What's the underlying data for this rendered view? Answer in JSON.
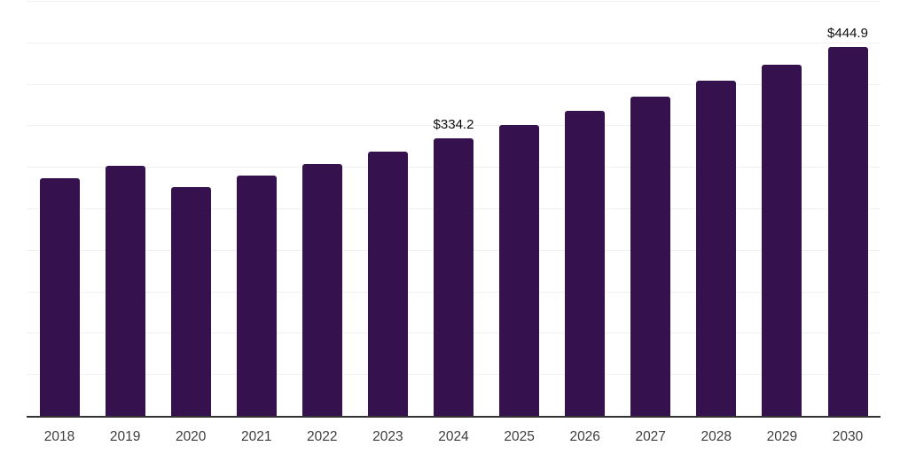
{
  "chart_data": {
    "type": "bar",
    "title": "",
    "xlabel": "",
    "ylabel": "",
    "categories": [
      "2018",
      "2019",
      "2020",
      "2021",
      "2022",
      "2023",
      "2024",
      "2025",
      "2026",
      "2027",
      "2028",
      "2029",
      "2030"
    ],
    "values": [
      286.4,
      301.3,
      276.0,
      289.4,
      303.0,
      318.4,
      334.2,
      350.3,
      367.2,
      385.0,
      403.6,
      423.1,
      444.9
    ],
    "data_labels": {
      "2024": "$334.2",
      "2030": "$444.9"
    },
    "ylim": [
      0,
      500
    ],
    "grid": {
      "visible": true,
      "interval": 50,
      "color": "#f1f1f1"
    },
    "legend": "none",
    "bar_color": "#35124E",
    "axis_line_color": "#333333",
    "value_label_color": "#0d0d0d",
    "tick_label_color": "#3d3d3d",
    "background_color": "#ffffff"
  }
}
